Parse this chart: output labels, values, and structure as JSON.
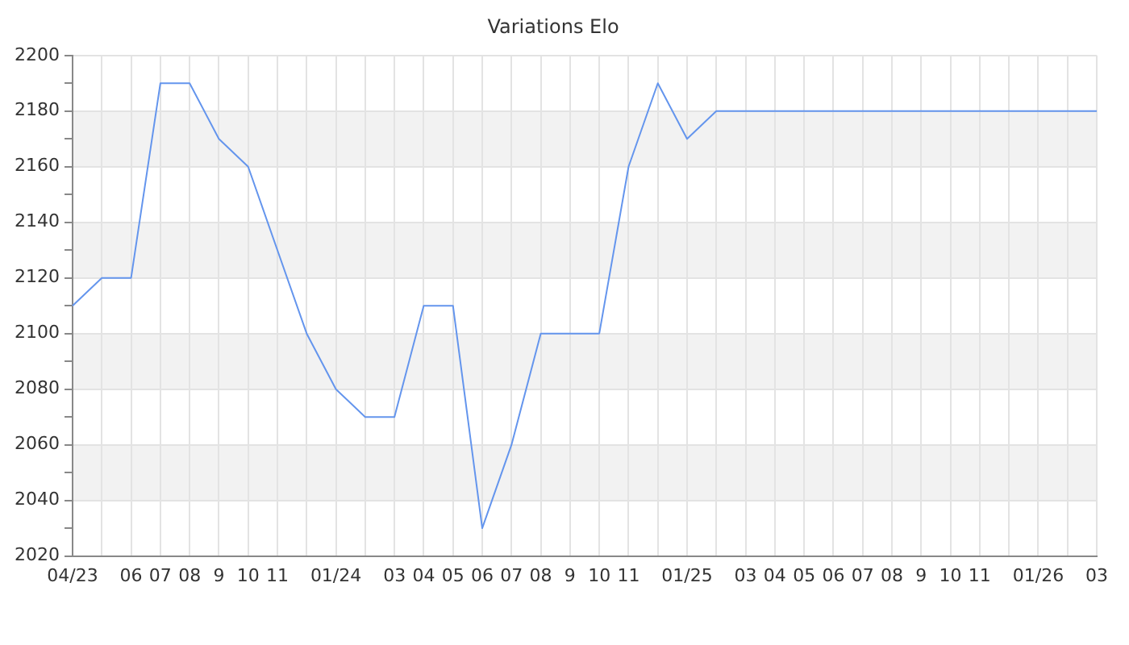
{
  "chart_data": {
    "type": "line",
    "title": "Variations Elo",
    "categories": [
      "04/23",
      null,
      "06",
      "07",
      "08",
      "9",
      "10",
      "11",
      null,
      "01/24",
      null,
      "03",
      "04",
      "05",
      "06",
      "07",
      "08",
      "9",
      "10",
      "11",
      null,
      "01/25",
      null,
      "03",
      "04",
      "05",
      "06",
      "07",
      "08",
      "9",
      "10",
      "11",
      null,
      "01/26",
      null,
      "03"
    ],
    "series": [
      {
        "color": "#6495ed",
        "values": [
          2110,
          2120,
          2120,
          2190,
          2190,
          2170,
          2160,
          2130,
          2100,
          2080,
          2070,
          2070,
          2110,
          2110,
          2030,
          2060,
          2100,
          2100,
          2100,
          2160,
          2190,
          2170,
          2180,
          2180,
          2180,
          2180,
          2180,
          2180,
          2180,
          2180,
          2180,
          2180,
          2180,
          2180,
          2180,
          2180
        ]
      }
    ],
    "ylim": [
      2020,
      2200
    ],
    "yticks": [
      2020,
      {
        "value": 2030,
        "label": null
      },
      2040,
      {
        "value": 2050,
        "label": null
      },
      2060,
      {
        "value": 2070,
        "label": null
      },
      2080,
      {
        "value": 2090,
        "label": null
      },
      2100,
      {
        "value": 2110,
        "label": null
      },
      2120,
      {
        "value": 2130,
        "label": null
      },
      2140,
      {
        "value": 2150,
        "label": null
      },
      2160,
      {
        "value": 2170,
        "label": null
      },
      2180,
      {
        "value": 2190,
        "label": null
      },
      2200
    ],
    "bands": [
      {
        "axis": "y",
        "from": 2040,
        "to": 2060,
        "color": "#f2f2f2"
      },
      {
        "axis": "y",
        "from": 2080,
        "to": 2100,
        "color": "#f2f2f2"
      },
      {
        "axis": "y",
        "from": 2120,
        "to": 2140,
        "color": "#f2f2f2"
      },
      {
        "axis": "y",
        "from": 2160,
        "to": 2180,
        "color": "#f2f2f2"
      }
    ],
    "grid": true,
    "legend": false,
    "marker": "none",
    "line_style": "solid"
  }
}
